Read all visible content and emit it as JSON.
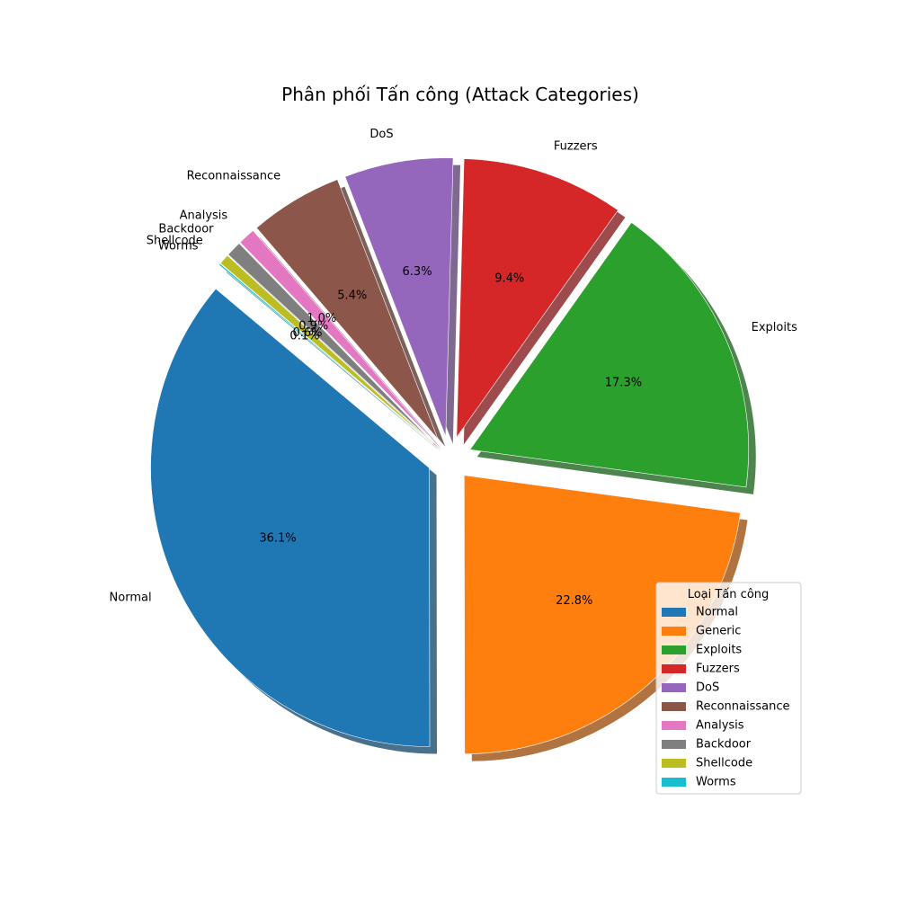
{
  "chart_data": {
    "type": "pie",
    "title": "Phân phối Tấn công (Attack Categories)",
    "start_angle_deg": 140,
    "direction": "counterclockwise",
    "shadow": true,
    "exploded": true,
    "legend": {
      "title": "Loại Tấn công",
      "placement": "bottom-right"
    },
    "slices": [
      {
        "label": "Normal",
        "value": 36.1,
        "pct_label": "36.1%",
        "color": "#1f77b4"
      },
      {
        "label": "Generic",
        "value": 22.8,
        "pct_label": "22.8%",
        "color": "#ff7f0e"
      },
      {
        "label": "Exploits",
        "value": 17.3,
        "pct_label": "17.3%",
        "color": "#2ca02c"
      },
      {
        "label": "Fuzzers",
        "value": 9.4,
        "pct_label": "9.4%",
        "color": "#d62728"
      },
      {
        "label": "DoS",
        "value": 6.3,
        "pct_label": "6.3%",
        "color": "#9467bd"
      },
      {
        "label": "Reconnaissance",
        "value": 5.4,
        "pct_label": "5.4%",
        "color": "#8c564b"
      },
      {
        "label": "Analysis",
        "value": 1.0,
        "pct_label": "1.0%",
        "color": "#e377c2"
      },
      {
        "label": "Backdoor",
        "value": 0.9,
        "pct_label": "0.9%",
        "color": "#7f7f7f"
      },
      {
        "label": "Shellcode",
        "value": 0.6,
        "pct_label": "0.6%",
        "color": "#bcbd22"
      },
      {
        "label": "Worms",
        "value": 0.1,
        "pct_label": "0.1%",
        "color": "#17becf"
      }
    ]
  }
}
